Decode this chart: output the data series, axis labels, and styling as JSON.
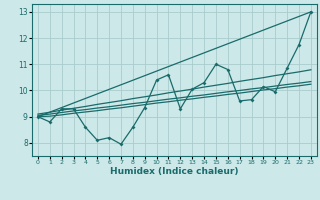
{
  "xlabel": "Humidex (Indice chaleur)",
  "bg_color": "#cce8e8",
  "grid_color": "#aacccc",
  "line_color": "#1a6b6b",
  "xlim": [
    -0.5,
    23.5
  ],
  "ylim": [
    7.5,
    13.3
  ],
  "xticks": [
    0,
    1,
    2,
    3,
    4,
    5,
    6,
    7,
    8,
    9,
    10,
    11,
    12,
    13,
    14,
    15,
    16,
    17,
    18,
    19,
    20,
    21,
    22,
    23
  ],
  "yticks": [
    8,
    9,
    10,
    11,
    12,
    13
  ],
  "jagged": {
    "x": [
      0,
      1,
      2,
      3,
      4,
      5,
      6,
      7,
      8,
      9,
      10,
      11,
      12,
      13,
      14,
      15,
      16,
      17,
      18,
      19,
      20,
      21,
      22,
      23
    ],
    "y": [
      9.0,
      8.8,
      9.3,
      9.3,
      8.6,
      8.1,
      8.2,
      7.95,
      8.6,
      9.35,
      10.4,
      10.6,
      9.3,
      10.05,
      10.3,
      11.0,
      10.8,
      9.6,
      9.65,
      10.15,
      9.95,
      10.85,
      11.75,
      13.0
    ]
  },
  "straight": {
    "x": [
      0,
      23
    ],
    "y": [
      9.0,
      13.0
    ]
  },
  "trend1": {
    "x": [
      0,
      1,
      2,
      3,
      4,
      5,
      6,
      7,
      8,
      9,
      10,
      11,
      12,
      13,
      14,
      15,
      16,
      17,
      18,
      19,
      20,
      21,
      22,
      23
    ],
    "y": [
      9.0,
      9.02,
      9.07,
      9.13,
      9.18,
      9.23,
      9.29,
      9.34,
      9.4,
      9.46,
      9.52,
      9.57,
      9.63,
      9.68,
      9.74,
      9.79,
      9.85,
      9.9,
      9.96,
      10.02,
      10.07,
      10.13,
      10.18,
      10.24
    ]
  },
  "trend2": {
    "x": [
      0,
      1,
      2,
      3,
      4,
      5,
      6,
      7,
      8,
      9,
      10,
      11,
      12,
      13,
      14,
      15,
      16,
      17,
      18,
      19,
      20,
      21,
      22,
      23
    ],
    "y": [
      9.05,
      9.1,
      9.16,
      9.22,
      9.27,
      9.33,
      9.38,
      9.44,
      9.5,
      9.55,
      9.61,
      9.67,
      9.72,
      9.78,
      9.83,
      9.89,
      9.95,
      10.0,
      10.06,
      10.11,
      10.17,
      10.23,
      10.28,
      10.34
    ]
  },
  "trend3": {
    "x": [
      0,
      1,
      2,
      3,
      4,
      5,
      6,
      7,
      8,
      9,
      10,
      11,
      12,
      13,
      14,
      15,
      16,
      17,
      18,
      19,
      20,
      21,
      22,
      23
    ],
    "y": [
      9.1,
      9.17,
      9.25,
      9.32,
      9.39,
      9.47,
      9.54,
      9.61,
      9.69,
      9.76,
      9.83,
      9.91,
      9.98,
      10.05,
      10.13,
      10.2,
      10.27,
      10.35,
      10.42,
      10.49,
      10.57,
      10.64,
      10.71,
      10.79
    ]
  }
}
